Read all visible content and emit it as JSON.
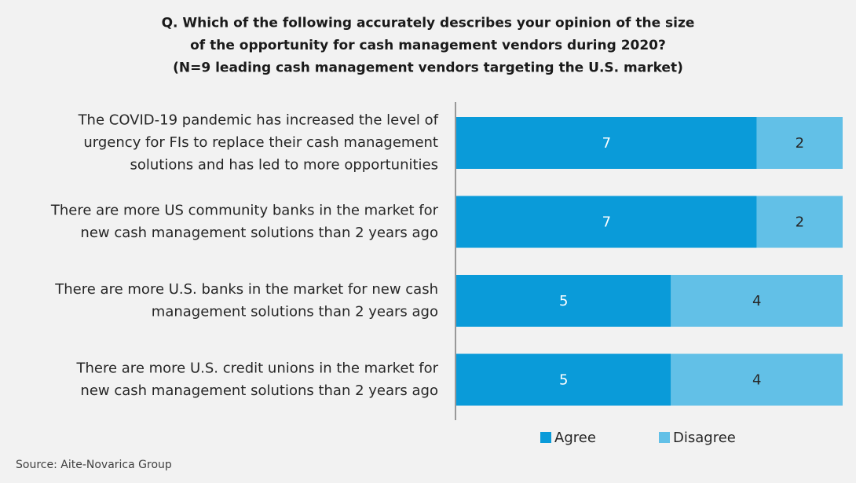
{
  "chart_data": {
    "type": "stacked-bar-horizontal",
    "title": "Q. Which of the following accurately describes your opinion of the size\nof the opportunity for cash management vendors during 2020?\n(N=9 leading cash management vendors targeting the U.S. market)",
    "categories": [
      "The COVID-19 pandemic has increased the level of\nurgency for FIs to replace their cash management\nsolutions and has led to more opportunities",
      "There are more US community banks in the market for\nnew cash management solutions than 2 years ago",
      "There are more U.S. banks in the market for new cash\nmanagement solutions than 2 years ago",
      "There are more U.S. credit unions in the market for\nnew cash management solutions than 2 years ago"
    ],
    "series": [
      {
        "name": "Agree",
        "color": "#0a9bd9",
        "values": [
          7,
          7,
          5,
          5
        ]
      },
      {
        "name": "Disagree",
        "color": "#62c0e7",
        "values": [
          2,
          2,
          4,
          4
        ]
      }
    ],
    "legend": "bottom",
    "source": "Source: Aite-Novarica Group"
  }
}
